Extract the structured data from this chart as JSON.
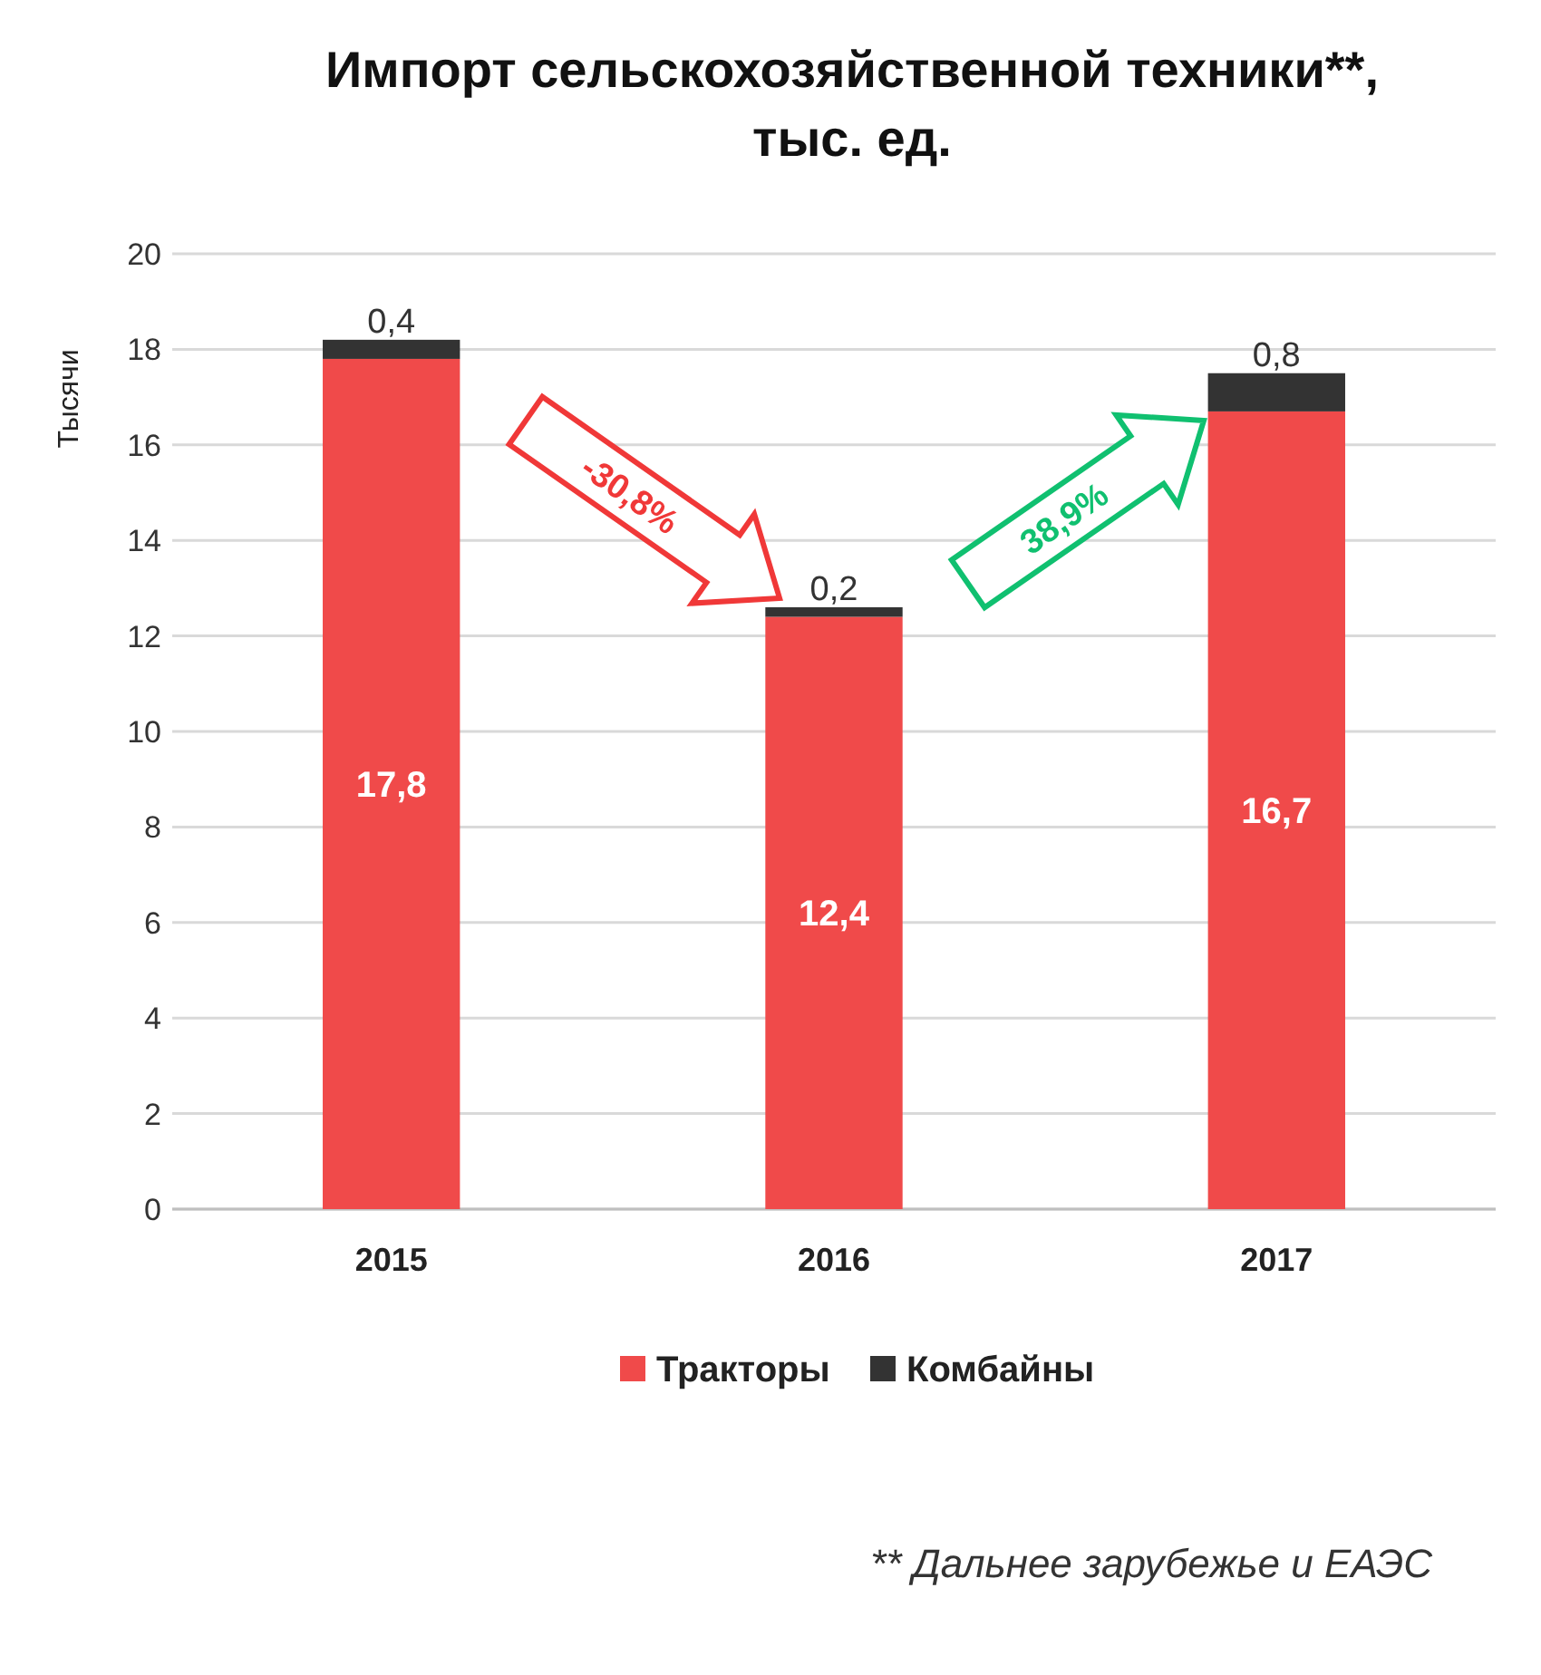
{
  "chart_data": {
    "type": "bar",
    "stacked": true,
    "title": "Импорт сельскохозяйственной техники**,\nтыс. ед.",
    "ylabel": "Тысячи",
    "categories": [
      "2015",
      "2016",
      "2017"
    ],
    "series": [
      {
        "name": "Тракторы",
        "color": "#f04a4a",
        "values": [
          17.8,
          12.4,
          16.7
        ],
        "value_labels": [
          "17,8",
          "12,4",
          "16,7"
        ]
      },
      {
        "name": "Комбайны",
        "color": "#333333",
        "values": [
          0.4,
          0.2,
          0.8
        ],
        "value_labels": [
          "0,4",
          "0,2",
          "0,8"
        ]
      }
    ],
    "ylim": [
      0,
      20
    ],
    "yticks": [
      0,
      2,
      4,
      6,
      8,
      10,
      12,
      14,
      16,
      18,
      20
    ],
    "grid": "y",
    "legend": "bottom",
    "annotations": [
      "-30,8%",
      "38,9%",
      "** Дальнее зарубежье и ЕАЭС"
    ]
  }
}
